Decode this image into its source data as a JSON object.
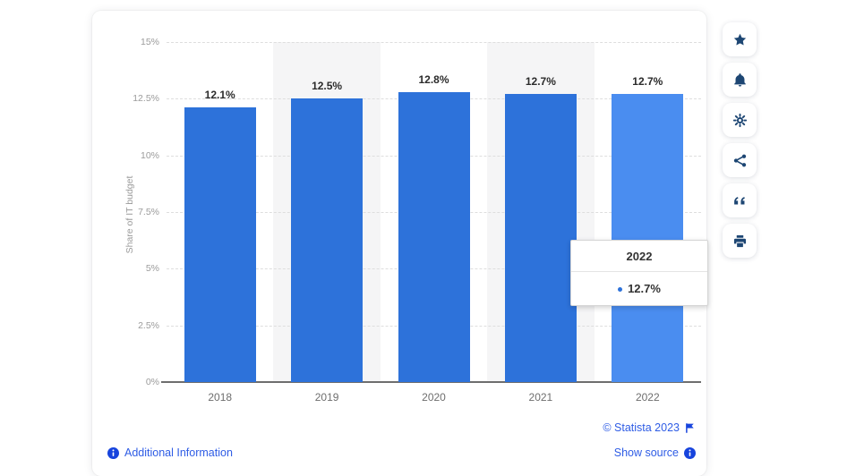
{
  "chart_data": {
    "type": "bar",
    "title": "",
    "categories": [
      "2018",
      "2019",
      "2020",
      "2021",
      "2022"
    ],
    "values": [
      12.1,
      12.5,
      12.8,
      12.7,
      12.7
    ],
    "value_labels": [
      "12.1%",
      "12.5%",
      "12.8%",
      "12.7%",
      "12.7%"
    ],
    "xlabel": "",
    "ylabel": "Share of IT budget",
    "ylim": [
      0,
      15
    ],
    "ytick_labels_top_to_bottom": [
      "15%",
      "12.5%",
      "10%",
      "7.5%",
      "5%",
      "2.5%",
      "0%"
    ],
    "grid": "horizontal-dashed",
    "legend": "none",
    "bar_color": "#2d72da",
    "highlight_color": "#4a8df0",
    "highlighted_index": 4,
    "band_color": "#f5f5f6",
    "banded_column_indexes": [
      1,
      3
    ]
  },
  "tooltip": {
    "title": "2022",
    "value": "12.7%",
    "marker_color": "#2d72da"
  },
  "toolbar": {
    "items": [
      {
        "name": "favorite",
        "icon": "star-icon"
      },
      {
        "name": "alerts",
        "icon": "bell-icon"
      },
      {
        "name": "settings",
        "icon": "gear-icon"
      },
      {
        "name": "share",
        "icon": "share-icon"
      },
      {
        "name": "cite",
        "icon": "quote-icon"
      },
      {
        "name": "print",
        "icon": "printer-icon"
      }
    ]
  },
  "footer": {
    "additional_information": "Additional Information",
    "copyright": "© Statista 2023",
    "show_source": "Show source"
  },
  "colors": {
    "link": "#2e5ce5",
    "icon_accent": "#1744dd",
    "toolbar_icon": "#1d4673",
    "tick_label": "#9b9b9b",
    "x_label": "#6e6e6e",
    "bar_label": "#2b2b2b"
  }
}
